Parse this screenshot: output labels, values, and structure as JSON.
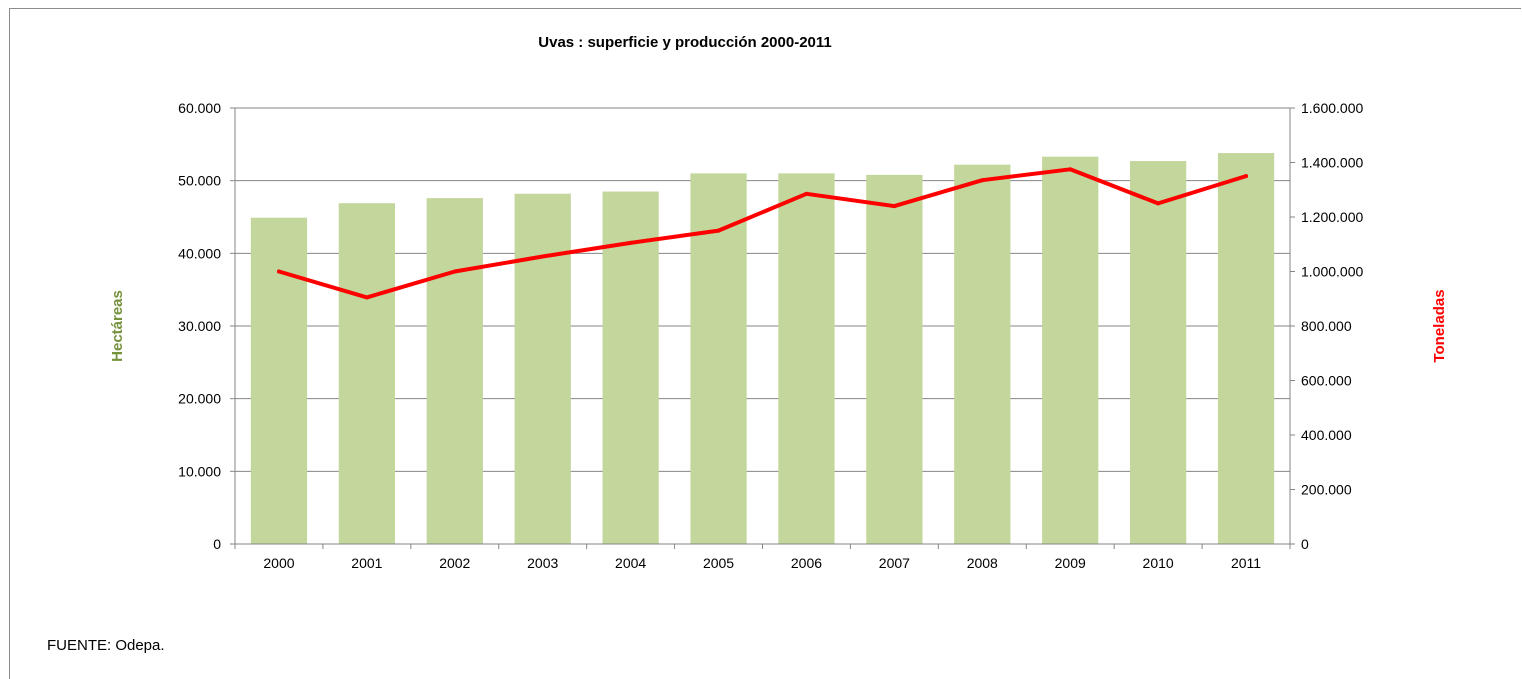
{
  "chart_data": {
    "type": "bar+line",
    "title": "Uvas : superficie y producción 2000-2011",
    "categories": [
      "2000",
      "2001",
      "2002",
      "2003",
      "2004",
      "2005",
      "2006",
      "2007",
      "2008",
      "2009",
      "2010",
      "2011"
    ],
    "series": [
      {
        "name": "Hectáreas",
        "type": "bar",
        "axis": "left",
        "color": "#c3d69b",
        "values": [
          44900,
          46900,
          47600,
          48200,
          48500,
          51000,
          51000,
          50800,
          52200,
          53300,
          52700,
          53800
        ]
      },
      {
        "name": "Toneladas",
        "type": "line",
        "axis": "right",
        "color": "#ff0000",
        "values": [
          1000000,
          905000,
          1000000,
          1055000,
          1105000,
          1150000,
          1285000,
          1240000,
          1335000,
          1375000,
          1250000,
          1350000
        ]
      }
    ],
    "ylabel_left": "Hectáreas",
    "ylabel_right": "Toneladas",
    "ylim_left": [
      0,
      60000
    ],
    "ylim_right": [
      0,
      1600000
    ],
    "yticks_left": [
      "0",
      "10.000",
      "20.000",
      "30.000",
      "40.000",
      "50.000",
      "60.000"
    ],
    "yticks_right": [
      "0",
      "200.000",
      "400.000",
      "600.000",
      "800.000",
      "1.000.000",
      "1.200.000",
      "1.400.000",
      "1.600.000"
    ],
    "grid": true,
    "legend": "none"
  },
  "colors": {
    "bar": "#c3d69b",
    "line": "#ff0000",
    "left_axis_label": "#76923c",
    "right_axis_label": "#ff0000",
    "grid": "#868686"
  },
  "source": "FUENTE: Odepa."
}
